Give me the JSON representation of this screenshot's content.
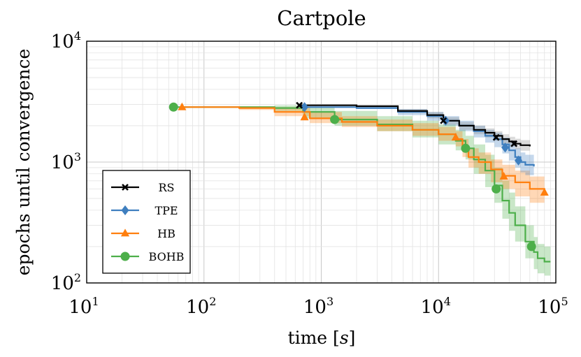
{
  "chart_data": {
    "type": "line",
    "title": "Cartpole",
    "xlabel": "time [s]",
    "xlabel_main": "time",
    "xlabel_unit": "s",
    "ylabel": "epochs until convergence",
    "xscale": "log",
    "yscale": "log",
    "xlim": [
      10,
      100000
    ],
    "ylim": [
      100,
      10000
    ],
    "x_ticks": [
      {
        "base": "10",
        "exp": "1",
        "value": 10
      },
      {
        "base": "10",
        "exp": "2",
        "value": 100
      },
      {
        "base": "10",
        "exp": "3",
        "value": 1000
      },
      {
        "base": "10",
        "exp": "4",
        "value": 10000
      },
      {
        "base": "10",
        "exp": "5",
        "value": 100000
      }
    ],
    "y_ticks": [
      {
        "base": "10",
        "exp": "2",
        "value": 100
      },
      {
        "base": "10",
        "exp": "3",
        "value": 1000
      },
      {
        "base": "10",
        "exp": "4",
        "value": 10000
      }
    ],
    "grid": true,
    "legend_position": "bottom-left",
    "series": [
      {
        "name": "RS",
        "color": "#000000",
        "band_color": "#888888",
        "marker": "x",
        "x": [
          650,
          700,
          2000,
          4500,
          8000,
          11000,
          15000,
          20000,
          25000,
          30000,
          35000,
          40000,
          45000,
          50000,
          60000
        ],
        "y": [
          2950,
          2950,
          2900,
          2650,
          2450,
          2200,
          2000,
          1850,
          1750,
          1650,
          1550,
          1480,
          1420,
          1380,
          1350
        ],
        "lower": [
          2950,
          2950,
          2880,
          2550,
          2300,
          2050,
          1850,
          1700,
          1600,
          1500,
          1420,
          1340,
          1280,
          1240,
          1200
        ],
        "upper": [
          2950,
          2950,
          2950,
          2750,
          2600,
          2350,
          2150,
          2000,
          1900,
          1800,
          1700,
          1620,
          1560,
          1520,
          1500
        ],
        "markers_x": [
          650,
          11000,
          31000,
          44000
        ],
        "markers_y": [
          2950,
          2200,
          1600,
          1420
        ]
      },
      {
        "name": "TPE",
        "color": "#3f7fbf",
        "band_color": "#3f7fbf",
        "marker": "diamond",
        "x": [
          700,
          750,
          2000,
          4500,
          8000,
          11000,
          15000,
          20000,
          25000,
          30000,
          35000,
          40000,
          45000,
          50000,
          55000,
          65000
        ],
        "y": [
          2850,
          2850,
          2800,
          2600,
          2400,
          2200,
          2000,
          1800,
          1650,
          1550,
          1400,
          1250,
          1100,
          1000,
          950,
          920
        ],
        "lower": [
          2850,
          2850,
          2750,
          2450,
          2200,
          2000,
          1800,
          1600,
          1450,
          1330,
          1180,
          1030,
          900,
          820,
          780,
          740
        ],
        "upper": [
          2850,
          2850,
          2850,
          2750,
          2600,
          2400,
          2200,
          2000,
          1850,
          1750,
          1600,
          1450,
          1300,
          1200,
          1150,
          1100
        ],
        "markers_x": [
          720,
          11500,
          37000,
          48000
        ],
        "markers_y": [
          2850,
          2200,
          1320,
          1030
        ]
      },
      {
        "name": "HB",
        "color": "#ff7f0e",
        "band_color": "#ff7f0e",
        "marker": "triangle",
        "x": [
          65,
          200,
          400,
          800,
          1500,
          3000,
          6000,
          10000,
          14000,
          16000,
          18000,
          22000,
          28000,
          35000,
          45000,
          60000,
          80000
        ],
        "y": [
          2850,
          2800,
          2600,
          2300,
          2150,
          2000,
          1850,
          1700,
          1550,
          1300,
          1100,
          1000,
          870,
          770,
          680,
          600,
          560
        ],
        "lower": [
          2850,
          2700,
          2400,
          2100,
          1950,
          1800,
          1650,
          1500,
          1350,
          1100,
          900,
          800,
          680,
          600,
          520,
          460,
          420
        ],
        "upper": [
          2850,
          2900,
          2850,
          2600,
          2400,
          2250,
          2100,
          1950,
          1800,
          1550,
          1300,
          1200,
          1050,
          950,
          850,
          760,
          720
        ],
        "markers_x": [
          65,
          720,
          14000,
          36000,
          80000
        ],
        "markers_y": [
          2850,
          2350,
          1600,
          760,
          560
        ]
      },
      {
        "name": "BOHB",
        "color": "#4daf4a",
        "band_color": "#4daf4a",
        "marker": "circle",
        "x": [
          55,
          200,
          400,
          700,
          1300,
          3000,
          6000,
          10000,
          14000,
          17000,
          20000,
          25000,
          30000,
          35000,
          40000,
          45000,
          55000,
          65000,
          70000,
          80000,
          90000
        ],
        "y": [
          2850,
          2850,
          2800,
          2600,
          2250,
          2050,
          1850,
          1700,
          1500,
          1300,
          1050,
          850,
          640,
          480,
          380,
          300,
          220,
          180,
          160,
          150,
          150
        ],
        "lower": [
          2850,
          2850,
          2650,
          2300,
          2000,
          1800,
          1600,
          1400,
          1250,
          1050,
          800,
          620,
          460,
          340,
          270,
          220,
          160,
          130,
          120,
          115,
          115
        ],
        "upper": [
          2850,
          2850,
          2950,
          2850,
          2650,
          2400,
          2200,
          2050,
          1850,
          1650,
          1400,
          1150,
          900,
          700,
          560,
          430,
          300,
          240,
          210,
          200,
          200
        ],
        "markers_x": [
          55,
          1300,
          17000,
          31000,
          62000
        ],
        "markers_y": [
          2850,
          2250,
          1300,
          600,
          200
        ]
      }
    ]
  }
}
